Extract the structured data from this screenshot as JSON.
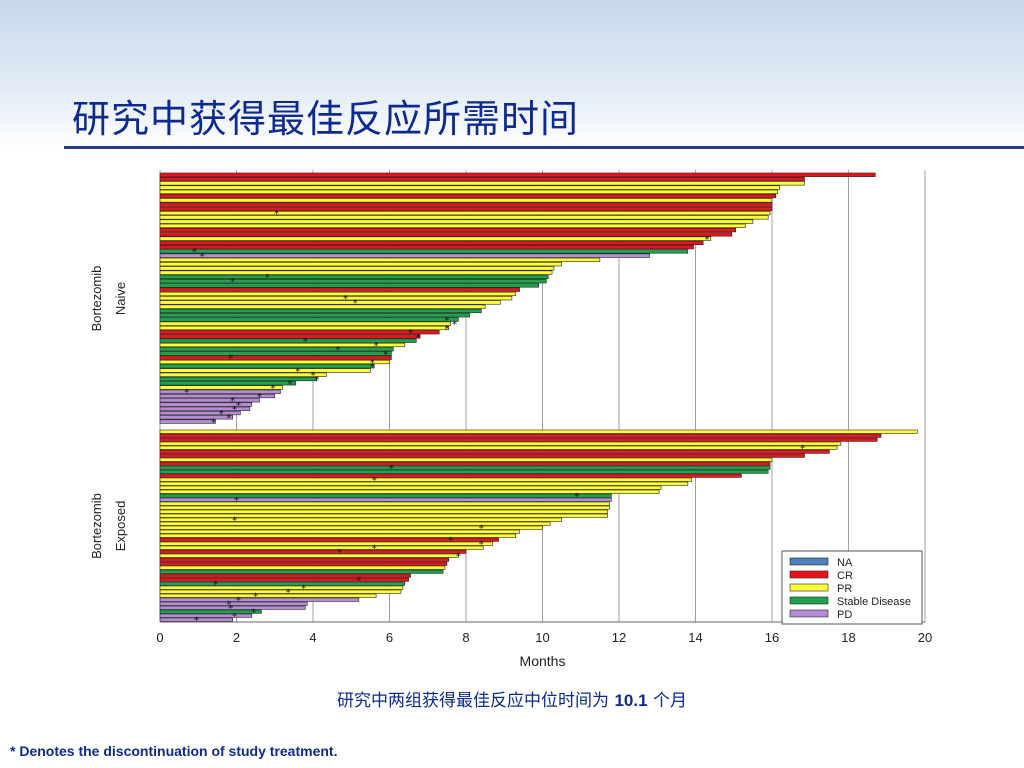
{
  "page": {
    "title": "研究中获得最佳反应所需时间",
    "subtitle_prefix": "研究中两组获得最佳反应中位时间为 ",
    "subtitle_value": "10.1",
    "subtitle_suffix": " 个月",
    "footnote": "* Denotes the discontinuation of study treatment."
  },
  "chart_data": {
    "type": "bar",
    "orientation": "horizontal",
    "xlabel": "Months",
    "xlim": [
      0,
      20
    ],
    "xticks": [
      0,
      2,
      4,
      6,
      8,
      10,
      12,
      14,
      16,
      18,
      20
    ],
    "grid": true,
    "legend_position": "bottom-right",
    "legend": [
      {
        "name": "NA",
        "color": "#4f81bd"
      },
      {
        "name": "CR",
        "color": "#e8141c"
      },
      {
        "name": "PR",
        "color": "#ffff33"
      },
      {
        "name": "Stable Disease",
        "color": "#1fa34a"
      },
      {
        "name": "PD",
        "color": "#b48ed4"
      }
    ],
    "groups": [
      {
        "label_line1": "Bortezomib",
        "label_line2": "Naive",
        "bars": [
          {
            "value": 18.7,
            "response": "CR"
          },
          {
            "value": 16.85,
            "response": "CR"
          },
          {
            "value": 16.85,
            "response": "PR"
          },
          {
            "value": 16.2,
            "response": "PR"
          },
          {
            "value": 16.15,
            "response": "PR"
          },
          {
            "value": 16.1,
            "response": "CR"
          },
          {
            "value": 16.0,
            "response": "PR"
          },
          {
            "value": 16.0,
            "response": "CR"
          },
          {
            "value": 16.0,
            "response": "CR"
          },
          {
            "value": 15.95,
            "response": "PR",
            "marker": 3.05
          },
          {
            "value": 15.9,
            "response": "PR"
          },
          {
            "value": 15.5,
            "response": "PR"
          },
          {
            "value": 15.3,
            "response": "PR"
          },
          {
            "value": 15.05,
            "response": "CR"
          },
          {
            "value": 14.95,
            "response": "CR"
          },
          {
            "value": 14.4,
            "response": "PR",
            "marker": 14.3
          },
          {
            "value": 14.2,
            "response": "CR"
          },
          {
            "value": 13.95,
            "response": "CR"
          },
          {
            "value": 13.8,
            "response": "SD",
            "marker": 0.9
          },
          {
            "value": 12.8,
            "response": "PD",
            "marker": 1.1
          },
          {
            "value": 11.5,
            "response": "PR"
          },
          {
            "value": 10.5,
            "response": "PR"
          },
          {
            "value": 10.3,
            "response": "PR"
          },
          {
            "value": 10.25,
            "response": "PR"
          },
          {
            "value": 10.15,
            "response": "SD",
            "marker": 2.8
          },
          {
            "value": 10.1,
            "response": "SD",
            "marker": 1.9
          },
          {
            "value": 9.9,
            "response": "SD"
          },
          {
            "value": 9.4,
            "response": "CR"
          },
          {
            "value": 9.3,
            "response": "PR"
          },
          {
            "value": 9.2,
            "response": "PR",
            "marker": 4.85
          },
          {
            "value": 8.9,
            "response": "PR",
            "marker": 5.1
          },
          {
            "value": 8.5,
            "response": "PR"
          },
          {
            "value": 8.4,
            "response": "SD"
          },
          {
            "value": 8.1,
            "response": "SD"
          },
          {
            "value": 7.8,
            "response": "SD",
            "marker": 7.5
          },
          {
            "value": 7.6,
            "response": "PR",
            "marker": 7.7
          },
          {
            "value": 7.55,
            "response": "PR",
            "marker": 7.5
          },
          {
            "value": 7.3,
            "response": "CR",
            "marker": 6.55
          },
          {
            "value": 6.8,
            "response": "CR",
            "marker": 6.75
          },
          {
            "value": 6.7,
            "response": "SD",
            "marker": 3.8
          },
          {
            "value": 6.4,
            "response": "PR",
            "marker": 5.65
          },
          {
            "value": 6.1,
            "response": "SD",
            "marker": 4.65
          },
          {
            "value": 6.05,
            "response": "SD",
            "marker": 5.9
          },
          {
            "value": 6.05,
            "response": "CR",
            "marker": 1.85
          },
          {
            "value": 6.0,
            "response": "PR",
            "marker": 5.55
          },
          {
            "value": 5.6,
            "response": "SD",
            "marker": 5.55
          },
          {
            "value": 5.5,
            "response": "PR",
            "marker": 3.6
          },
          {
            "value": 4.35,
            "response": "PR",
            "marker": 4.0
          },
          {
            "value": 4.1,
            "response": "SD",
            "marker": 4.1
          },
          {
            "value": 3.55,
            "response": "SD",
            "marker": 3.4
          },
          {
            "value": 3.2,
            "response": "PR",
            "marker": 2.95
          },
          {
            "value": 3.15,
            "response": "PD",
            "marker": 0.7
          },
          {
            "value": 3.0,
            "response": "PD",
            "marker": 2.6
          },
          {
            "value": 2.6,
            "response": "PD",
            "marker": 1.9
          },
          {
            "value": 2.4,
            "response": "PD",
            "marker": 2.05
          },
          {
            "value": 2.35,
            "response": "PD",
            "marker": 1.95
          },
          {
            "value": 2.1,
            "response": "PD",
            "marker": 1.6
          },
          {
            "value": 1.9,
            "response": "PD",
            "marker": 1.8
          },
          {
            "value": 1.45,
            "response": "PD",
            "marker": 1.4
          }
        ]
      },
      {
        "label_line1": "Bortezomib",
        "label_line2": "Exposed",
        "bars": [
          {
            "value": 19.8,
            "response": "PR"
          },
          {
            "value": 18.85,
            "response": "CR"
          },
          {
            "value": 18.75,
            "response": "CR"
          },
          {
            "value": 17.8,
            "response": "PR"
          },
          {
            "value": 17.7,
            "response": "PR",
            "marker": 16.8
          },
          {
            "value": 17.5,
            "response": "CR"
          },
          {
            "value": 16.85,
            "response": "CR"
          },
          {
            "value": 16.0,
            "response": "PR"
          },
          {
            "value": 15.95,
            "response": "CR"
          },
          {
            "value": 15.95,
            "response": "SD",
            "marker": 6.05
          },
          {
            "value": 15.9,
            "response": "SD"
          },
          {
            "value": 15.2,
            "response": "CR"
          },
          {
            "value": 13.9,
            "response": "PR",
            "marker": 5.6
          },
          {
            "value": 13.8,
            "response": "PR"
          },
          {
            "value": 13.1,
            "response": "PR"
          },
          {
            "value": 13.05,
            "response": "PR"
          },
          {
            "value": 11.8,
            "response": "SD",
            "marker": 10.9
          },
          {
            "value": 11.8,
            "response": "PD",
            "marker": 2.0
          },
          {
            "value": 11.75,
            "response": "PR"
          },
          {
            "value": 11.75,
            "response": "PR"
          },
          {
            "value": 11.7,
            "response": "PR"
          },
          {
            "value": 11.7,
            "response": "PR"
          },
          {
            "value": 10.5,
            "response": "PR",
            "marker": 1.95
          },
          {
            "value": 10.2,
            "response": "PR"
          },
          {
            "value": 10.0,
            "response": "PR",
            "marker": 8.4
          },
          {
            "value": 9.4,
            "response": "PR"
          },
          {
            "value": 9.3,
            "response": "PR"
          },
          {
            "value": 8.85,
            "response": "CR",
            "marker": 7.6
          },
          {
            "value": 8.7,
            "response": "PR",
            "marker": 8.4
          },
          {
            "value": 8.45,
            "response": "PR",
            "marker": 5.6
          },
          {
            "value": 8.0,
            "response": "CR",
            "marker": 4.7
          },
          {
            "value": 7.8,
            "response": "PR",
            "marker": 7.8
          },
          {
            "value": 7.55,
            "response": "CR"
          },
          {
            "value": 7.5,
            "response": "CR"
          },
          {
            "value": 7.45,
            "response": "PR"
          },
          {
            "value": 7.4,
            "response": "SD"
          },
          {
            "value": 6.55,
            "response": "CR"
          },
          {
            "value": 6.5,
            "response": "CR",
            "marker": 5.2
          },
          {
            "value": 6.4,
            "response": "SD",
            "marker": 1.45
          },
          {
            "value": 6.35,
            "response": "PR",
            "marker": 3.75
          },
          {
            "value": 6.3,
            "response": "PR",
            "marker": 3.35
          },
          {
            "value": 5.65,
            "response": "PR",
            "marker": 2.5
          },
          {
            "value": 5.2,
            "response": "PD",
            "marker": 2.05
          },
          {
            "value": 3.85,
            "response": "PD",
            "marker": 1.8
          },
          {
            "value": 3.8,
            "response": "PD",
            "marker": 1.85
          },
          {
            "value": 2.65,
            "response": "SD",
            "marker": 2.45
          },
          {
            "value": 2.4,
            "response": "PD",
            "marker": 1.95
          },
          {
            "value": 1.9,
            "response": "PD",
            "marker": 0.95
          }
        ]
      }
    ]
  }
}
